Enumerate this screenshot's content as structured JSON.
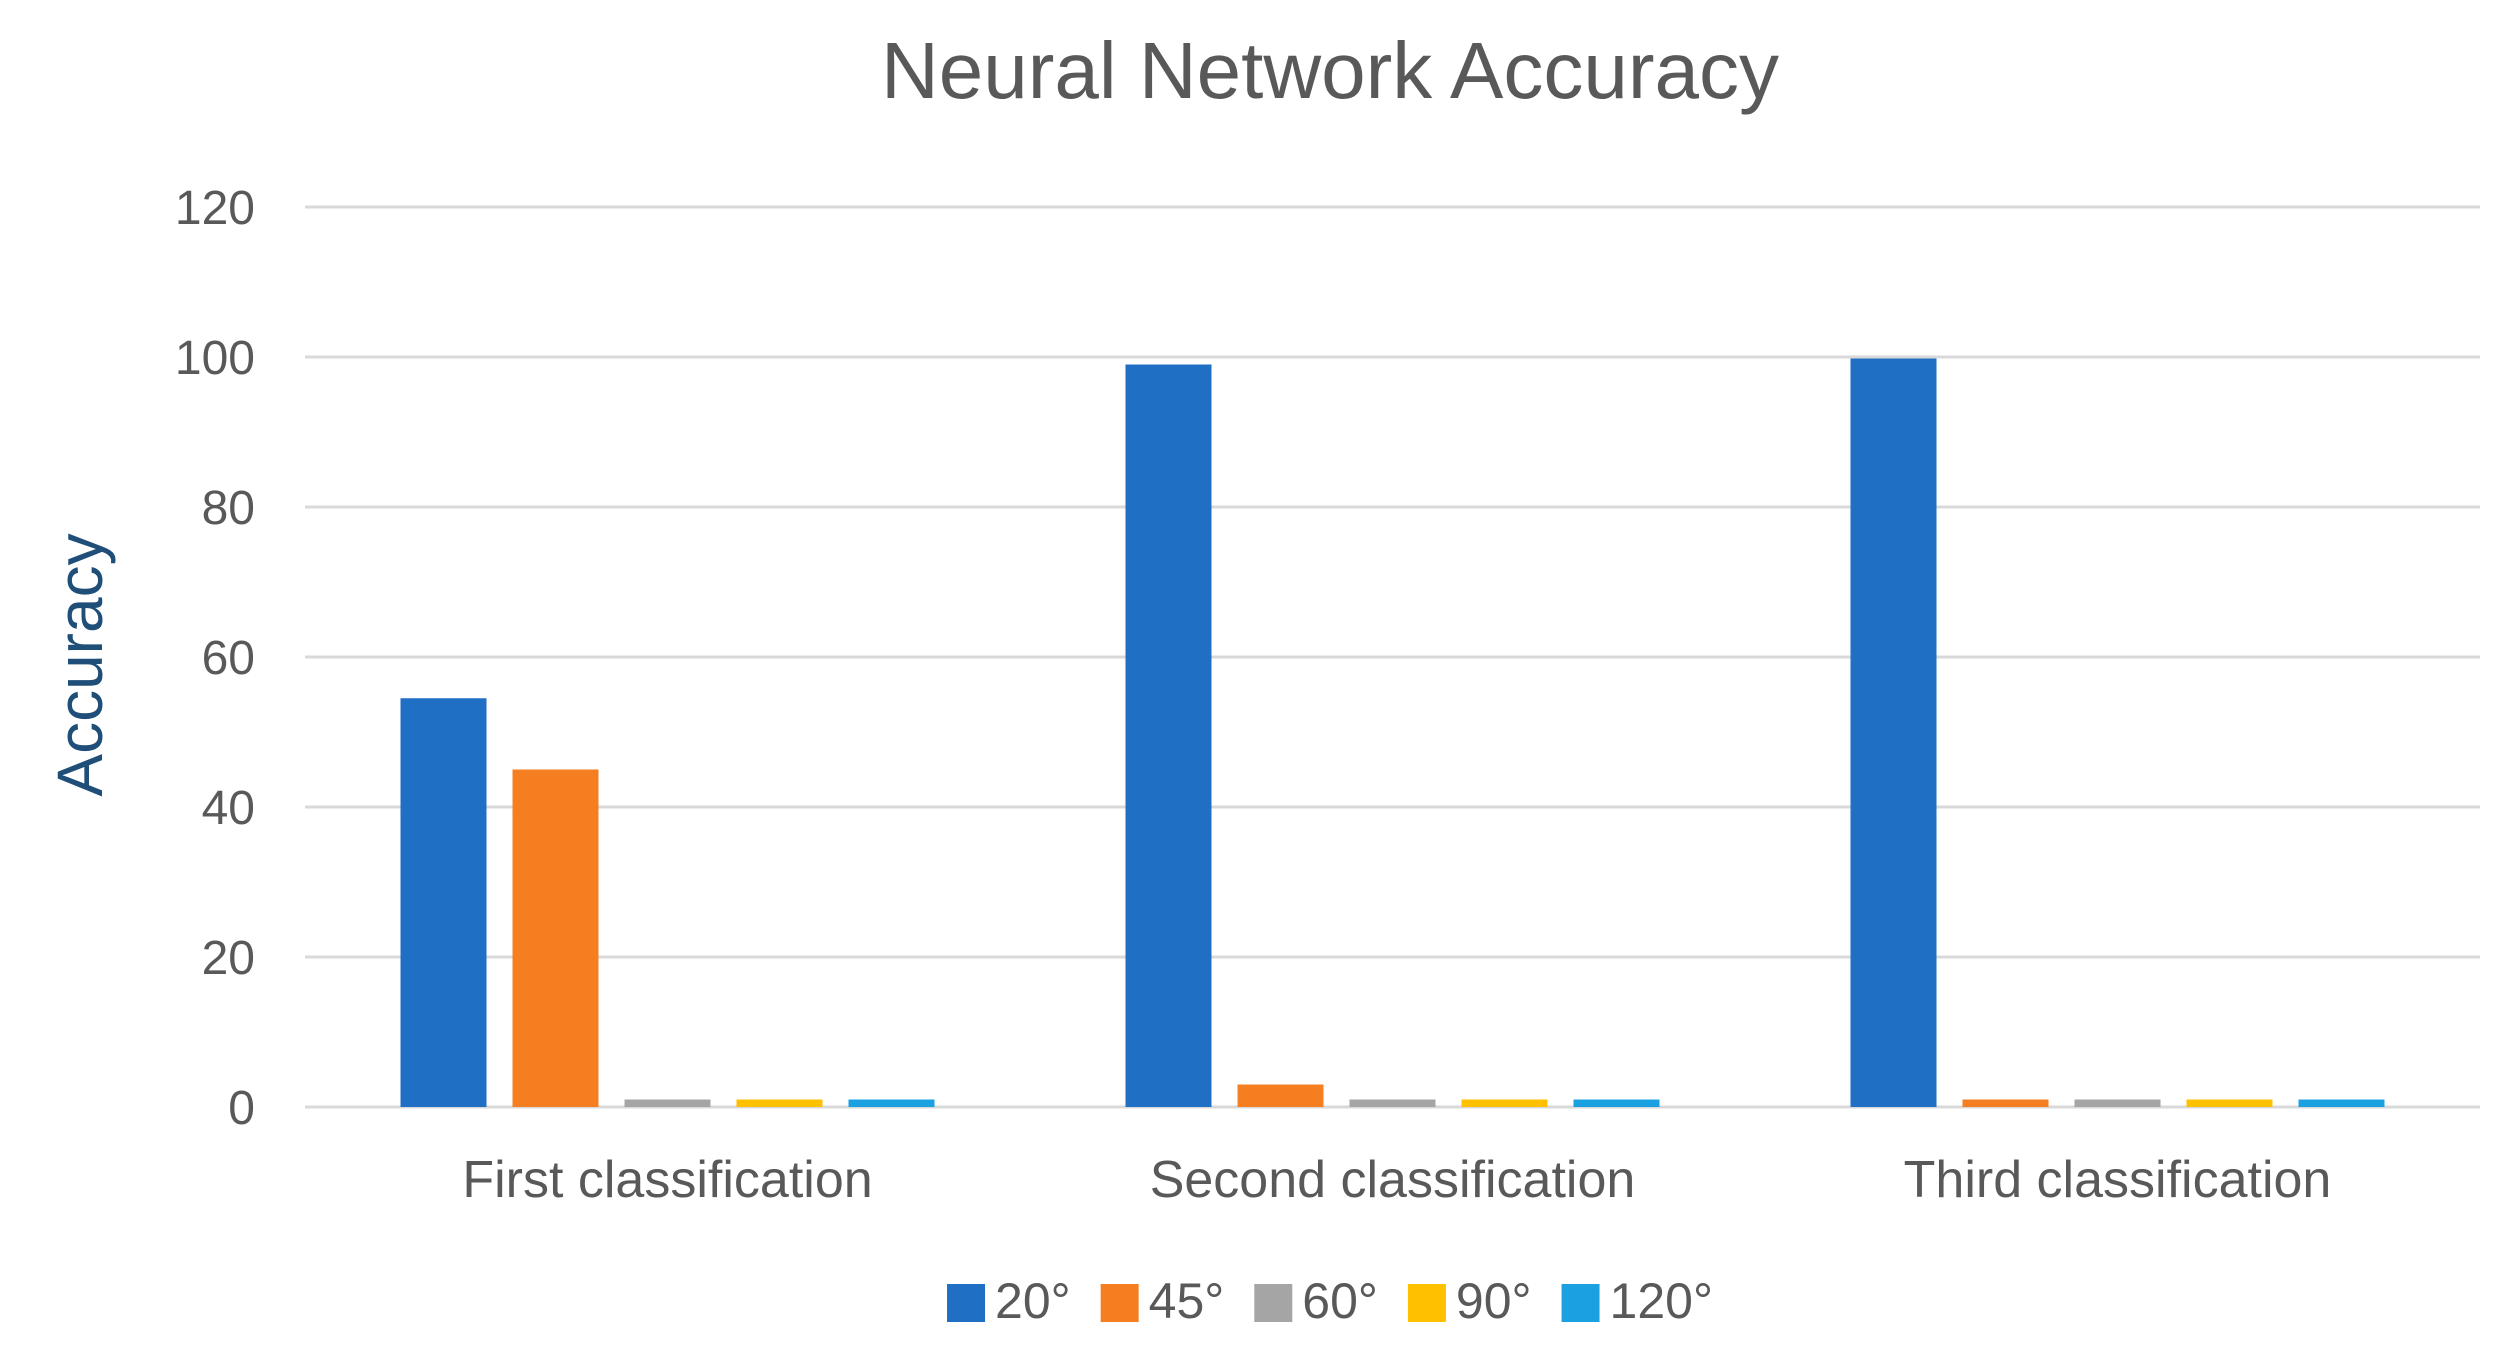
{
  "chart_data": {
    "type": "bar",
    "title": "Neural Network Accuracy",
    "xlabel": "",
    "ylabel": "Accuracy",
    "ylim": [
      0,
      120
    ],
    "yticks": [
      0,
      20,
      40,
      60,
      80,
      100,
      120
    ],
    "grid": true,
    "legend_position": "bottom",
    "categories": [
      "First classification",
      "Second classification",
      "Third classification"
    ],
    "series": [
      {
        "name": "20°",
        "color": "#1F6FC5",
        "values": [
          54.5,
          99,
          99.8
        ]
      },
      {
        "name": "45°",
        "color": "#F57F20",
        "values": [
          45,
          3,
          1
        ]
      },
      {
        "name": "60°",
        "color": "#A5A5A5",
        "values": [
          1,
          1,
          1
        ]
      },
      {
        "name": "90°",
        "color": "#FFC000",
        "values": [
          1,
          1,
          1
        ]
      },
      {
        "name": "120°",
        "color": "#1BA1E2",
        "values": [
          1,
          1,
          1
        ]
      }
    ]
  }
}
